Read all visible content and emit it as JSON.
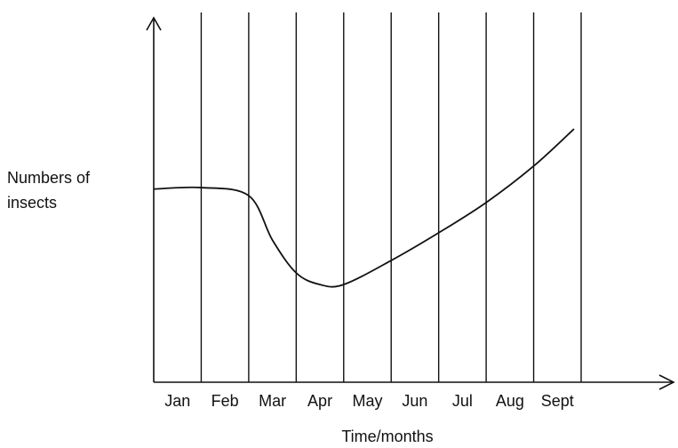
{
  "chart_data": {
    "type": "line",
    "y_label": "Numbers of insects",
    "x_label": "Time/months",
    "categories": [
      "Jan",
      "Feb",
      "Mar",
      "Apr",
      "May",
      "Jun",
      "Jul",
      "Aug",
      "Sept"
    ],
    "x": [
      0,
      1,
      2,
      2.5,
      3,
      3.5,
      4,
      5,
      6,
      7,
      8,
      8.85
    ],
    "series": [
      {
        "color": "#111111",
        "values": [
          53,
          53.4,
          51.2,
          39,
          30,
          26.8,
          26.8,
          33.4,
          41,
          49.3,
          59.3,
          69.5
        ]
      }
    ],
    "xlim": [
      0,
      9
    ],
    "ylim": [
      0,
      100
    ]
  }
}
